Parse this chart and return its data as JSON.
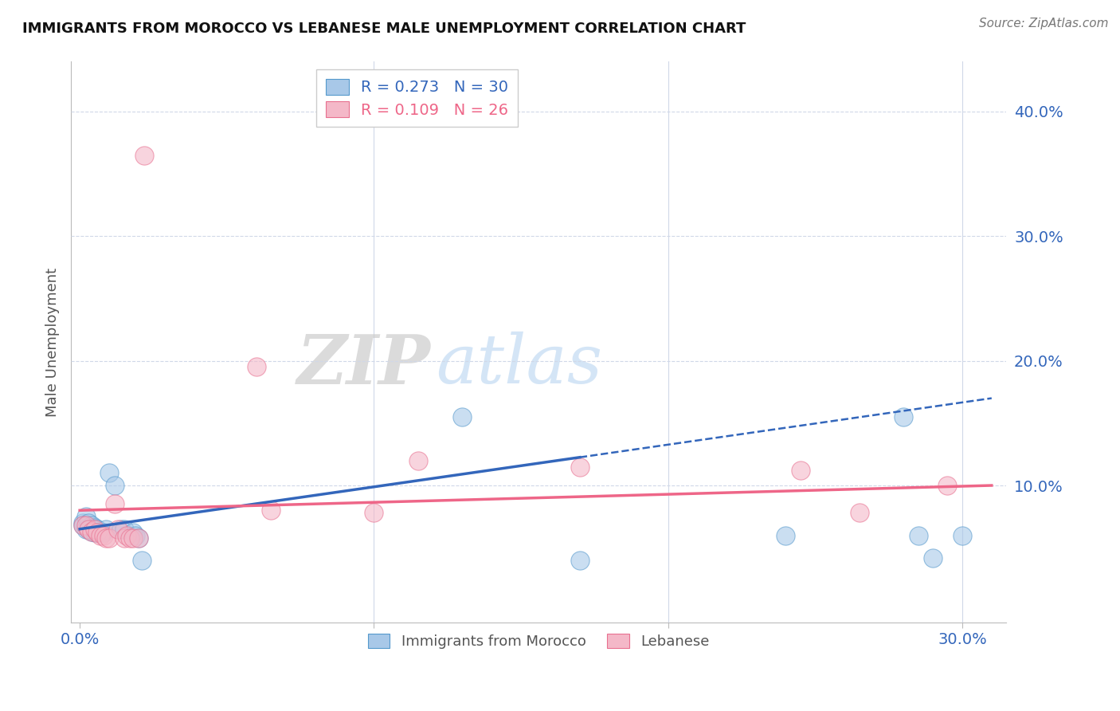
{
  "title": "IMMIGRANTS FROM MOROCCO VS LEBANESE MALE UNEMPLOYMENT CORRELATION CHART",
  "source": "Source: ZipAtlas.com",
  "ylabel": "Male Unemployment",
  "xlim": [
    -0.003,
    0.315
  ],
  "ylim": [
    -0.01,
    0.44
  ],
  "xticks": [
    0.0,
    0.1,
    0.2,
    0.3
  ],
  "xtick_labels": [
    "0.0%",
    "",
    "",
    "30.0%"
  ],
  "yticks_right": [
    0.1,
    0.2,
    0.3,
    0.4
  ],
  "ytick_labels_right": [
    "10.0%",
    "20.0%",
    "30.0%",
    "40.0%"
  ],
  "legend_r1": "R = 0.273",
  "legend_n1": "N = 30",
  "legend_r2": "R = 0.109",
  "legend_n2": "N = 26",
  "blue_color": "#a8c8e8",
  "pink_color": "#f4b8c8",
  "blue_edge_color": "#5599cc",
  "pink_edge_color": "#e87090",
  "blue_line_color": "#3366bb",
  "pink_line_color": "#ee6688",
  "blue_scatter": [
    [
      0.001,
      0.07
    ],
    [
      0.001,
      0.068
    ],
    [
      0.002,
      0.075
    ],
    [
      0.002,
      0.065
    ],
    [
      0.003,
      0.07
    ],
    [
      0.003,
      0.065
    ],
    [
      0.004,
      0.068
    ],
    [
      0.004,
      0.063
    ],
    [
      0.005,
      0.066
    ],
    [
      0.005,
      0.062
    ],
    [
      0.006,
      0.065
    ],
    [
      0.006,
      0.062
    ],
    [
      0.007,
      0.063
    ],
    [
      0.008,
      0.062
    ],
    [
      0.009,
      0.065
    ],
    [
      0.01,
      0.11
    ],
    [
      0.012,
      0.1
    ],
    [
      0.014,
      0.065
    ],
    [
      0.015,
      0.065
    ],
    [
      0.018,
      0.062
    ],
    [
      0.019,
      0.06
    ],
    [
      0.02,
      0.058
    ],
    [
      0.021,
      0.04
    ],
    [
      0.13,
      0.155
    ],
    [
      0.17,
      0.04
    ],
    [
      0.24,
      0.06
    ],
    [
      0.28,
      0.155
    ],
    [
      0.285,
      0.06
    ],
    [
      0.29,
      0.042
    ],
    [
      0.3,
      0.06
    ]
  ],
  "pink_scatter": [
    [
      0.001,
      0.068
    ],
    [
      0.002,
      0.068
    ],
    [
      0.003,
      0.065
    ],
    [
      0.004,
      0.063
    ],
    [
      0.005,
      0.065
    ],
    [
      0.006,
      0.062
    ],
    [
      0.007,
      0.06
    ],
    [
      0.008,
      0.06
    ],
    [
      0.009,
      0.058
    ],
    [
      0.01,
      0.058
    ],
    [
      0.012,
      0.085
    ],
    [
      0.013,
      0.065
    ],
    [
      0.015,
      0.058
    ],
    [
      0.016,
      0.06
    ],
    [
      0.017,
      0.058
    ],
    [
      0.018,
      0.058
    ],
    [
      0.02,
      0.058
    ],
    [
      0.022,
      0.365
    ],
    [
      0.06,
      0.195
    ],
    [
      0.065,
      0.08
    ],
    [
      0.1,
      0.078
    ],
    [
      0.115,
      0.12
    ],
    [
      0.17,
      0.115
    ],
    [
      0.245,
      0.112
    ],
    [
      0.265,
      0.078
    ],
    [
      0.295,
      0.1
    ]
  ],
  "blue_solid_xrange": [
    0.0,
    0.17
  ],
  "blue_dash_xrange": [
    0.17,
    0.31
  ],
  "pink_solid_xrange": [
    0.0,
    0.31
  ],
  "watermark_zip": "ZIP",
  "watermark_atlas": "atlas",
  "grid_color": "#d0d8e8",
  "background_color": "#ffffff"
}
